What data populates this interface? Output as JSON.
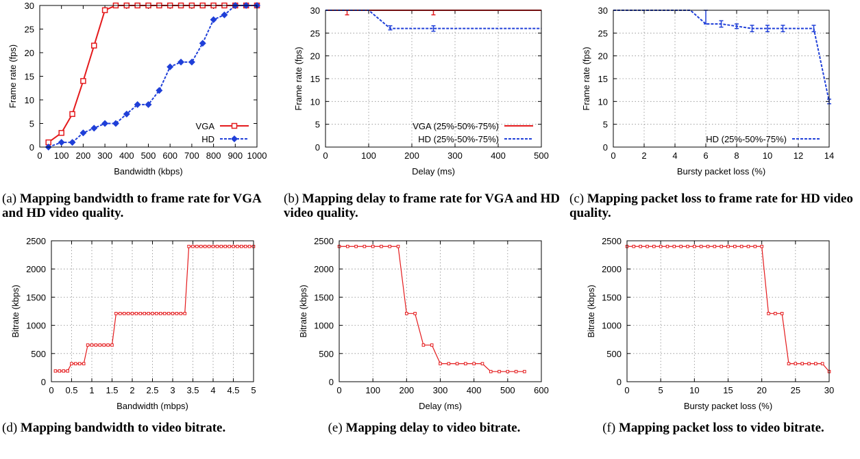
{
  "panels": [
    {
      "tag": "(a)",
      "caption": "Mapping bandwidth to frame rate for VGA and HD video quality.",
      "chart_data": {
        "type": "line",
        "xlabel": "Bandwidth (kbps)",
        "ylabel": "Frame rate (fps)",
        "xlim": [
          0,
          1000
        ],
        "ylim": [
          0,
          30
        ],
        "xticks": [
          0,
          100,
          200,
          300,
          400,
          500,
          600,
          700,
          800,
          900,
          1000
        ],
        "yticks": [
          0,
          5,
          10,
          15,
          20,
          25,
          30
        ],
        "grid": false,
        "legend_position": "bottom-right",
        "series": [
          {
            "name": "VGA",
            "color": "#e41a1c",
            "marker": "square",
            "dash": "solid",
            "x": [
              40,
              100,
              150,
              200,
              250,
              300,
              350,
              400,
              450,
              500,
              550,
              600,
              650,
              700,
              750,
              800,
              850,
              900,
              950,
              1000
            ],
            "y": [
              1,
              3,
              7,
              14,
              21.5,
              29,
              30,
              30,
              30,
              30,
              30,
              30,
              30,
              30,
              30,
              30,
              30,
              30,
              30,
              30
            ]
          },
          {
            "name": "HD",
            "color": "#1f3fd8",
            "marker": "diamond",
            "dash": "dashed",
            "x": [
              40,
              100,
              150,
              200,
              250,
              300,
              350,
              400,
              450,
              500,
              550,
              600,
              650,
              700,
              750,
              800,
              850,
              900,
              950,
              1000
            ],
            "y": [
              0,
              1,
              1,
              3,
              4,
              5,
              5,
              7,
              9,
              9,
              12,
              17,
              18,
              18,
              22,
              27,
              28,
              30,
              30,
              30
            ]
          }
        ]
      }
    },
    {
      "tag": "(b)",
      "caption": "Mapping delay to frame rate for VGA and HD video quality.",
      "chart_data": {
        "type": "line",
        "xlabel": "Delay (ms)",
        "ylabel": "Frame rate (fps)",
        "xlim": [
          0,
          500
        ],
        "ylim": [
          0,
          30
        ],
        "xticks": [
          0,
          100,
          200,
          300,
          400,
          500
        ],
        "yticks": [
          0,
          5,
          10,
          15,
          20,
          25,
          30
        ],
        "grid": true,
        "legend_position": "bottom-right",
        "series": [
          {
            "name": "VGA (25%-50%-75%)",
            "color": "#e41a1c",
            "marker": "none",
            "dash": "solid",
            "x": [
              0,
              50,
              100,
              150,
              200,
              250,
              300,
              350,
              400,
              450,
              500
            ],
            "y": [
              30,
              30,
              30,
              30,
              30,
              30,
              30,
              30,
              30,
              30,
              30
            ],
            "err_low": [
              0,
              1,
              0,
              0,
              0,
              1,
              0,
              0,
              0,
              0,
              0
            ],
            "err_high": [
              0,
              0,
              0,
              0,
              0,
              0,
              0,
              0,
              0,
              0,
              0
            ]
          },
          {
            "name": "HD (25%-50%-75%)",
            "color": "#1f3fd8",
            "marker": "none",
            "dash": "dashed",
            "x": [
              0,
              50,
              100,
              150,
              200,
              250,
              300,
              350,
              400,
              450,
              500
            ],
            "y": [
              30,
              30,
              30,
              26,
              26,
              26,
              26,
              26,
              26,
              26,
              26
            ],
            "err_low": [
              0,
              0,
              0,
              0.3,
              0,
              0.6,
              0,
              0,
              0,
              0,
              0
            ],
            "err_high": [
              0,
              0,
              0,
              0.6,
              0,
              0.6,
              0,
              0,
              0,
              0,
              0
            ]
          }
        ]
      }
    },
    {
      "tag": "(c)",
      "caption": "Mapping packet loss to frame rate for HD video quality.",
      "chart_data": {
        "type": "line",
        "xlabel": "Bursty packet loss (%)",
        "ylabel": "Frame rate (fps)",
        "xlim": [
          0,
          14
        ],
        "ylim": [
          0,
          30
        ],
        "xticks": [
          0,
          2,
          4,
          6,
          8,
          10,
          12,
          14
        ],
        "yticks": [
          0,
          5,
          10,
          15,
          20,
          25,
          30
        ],
        "grid": true,
        "legend_position": "bottom-right",
        "series": [
          {
            "name": "HD (25%-50%-75%)",
            "color": "#1f3fd8",
            "marker": "none",
            "dash": "dashed",
            "x": [
              0,
              1,
              2,
              3,
              4,
              5,
              6,
              7,
              8,
              9,
              10,
              11,
              12,
              13,
              14
            ],
            "y": [
              30,
              30,
              30,
              30,
              30,
              30,
              27,
              27,
              26.5,
              26,
              26,
              26,
              26,
              26,
              10
            ],
            "err_low": [
              0,
              0,
              0,
              0,
              0,
              0,
              0,
              0.7,
              0.5,
              0.7,
              0.7,
              0.7,
              0,
              0.7,
              0.5
            ],
            "err_high": [
              0,
              0,
              0,
              0,
              0,
              0,
              3,
              0.7,
              0.5,
              0.7,
              0.7,
              0.7,
              0,
              0.7,
              0.5
            ]
          }
        ]
      }
    },
    {
      "tag": "(d)",
      "caption": "Mapping bandwidth to video bitrate.",
      "chart_data": {
        "type": "line",
        "xlabel": "Bandwidth (mbps)",
        "ylabel": "Bitrate (kbps)",
        "xlim": [
          0,
          5
        ],
        "ylim": [
          0,
          2500
        ],
        "xticks": [
          0,
          0.5,
          1,
          1.5,
          2,
          2.5,
          3,
          3.5,
          4,
          4.5,
          5
        ],
        "yticks": [
          0,
          500,
          1000,
          1500,
          2000,
          2500
        ],
        "grid": true,
        "series": [
          {
            "color": "#e41a1c",
            "marker": "small-square",
            "dash": "solid",
            "x": [
              0.1,
              0.2,
              0.3,
              0.4,
              0.5,
              0.6,
              0.7,
              0.8,
              0.9,
              1.0,
              1.1,
              1.2,
              1.3,
              1.4,
              1.5,
              1.6,
              1.7,
              1.8,
              1.9,
              2.0,
              2.1,
              2.2,
              2.3,
              2.4,
              2.5,
              2.6,
              2.7,
              2.8,
              2.9,
              3.0,
              3.1,
              3.2,
              3.3,
              3.4,
              3.5,
              3.6,
              3.7,
              3.8,
              3.9,
              4.0,
              4.1,
              4.2,
              4.3,
              4.4,
              4.5,
              4.6,
              4.7,
              4.8,
              4.9,
              5.0
            ],
            "y": [
              190,
              190,
              190,
              190,
              320,
              320,
              320,
              320,
              650,
              650,
              650,
              650,
              650,
              650,
              650,
              1210,
              1210,
              1210,
              1210,
              1210,
              1210,
              1210,
              1210,
              1210,
              1210,
              1210,
              1210,
              1210,
              1210,
              1210,
              1210,
              1210,
              1210,
              2400,
              2400,
              2400,
              2400,
              2400,
              2400,
              2400,
              2400,
              2400,
              2400,
              2400,
              2400,
              2400,
              2400,
              2400,
              2400,
              2400
            ]
          }
        ]
      }
    },
    {
      "tag": "(e)",
      "caption": "Mapping delay to video bitrate.",
      "chart_data": {
        "type": "line",
        "xlabel": "Delay (ms)",
        "ylabel": "Bitrate (kbps)",
        "xlim": [
          0,
          600
        ],
        "ylim": [
          0,
          2500
        ],
        "xticks": [
          0,
          100,
          200,
          300,
          400,
          500,
          600
        ],
        "yticks": [
          0,
          500,
          1000,
          1500,
          2000,
          2500
        ],
        "grid": true,
        "series": [
          {
            "color": "#e41a1c",
            "marker": "small-square",
            "dash": "solid",
            "x": [
              0,
              25,
              50,
              75,
              100,
              125,
              150,
              175,
              200,
              225,
              250,
              275,
              300,
              325,
              350,
              375,
              400,
              425,
              450,
              475,
              500,
              525,
              550
            ],
            "y": [
              2400,
              2400,
              2400,
              2400,
              2400,
              2400,
              2400,
              2400,
              1210,
              1210,
              650,
              650,
              320,
              320,
              320,
              320,
              320,
              320,
              180,
              180,
              180,
              180,
              180
            ]
          }
        ]
      }
    },
    {
      "tag": "(f)",
      "caption": "Mapping packet loss to video bitrate.",
      "chart_data": {
        "type": "line",
        "xlabel": "Bursty packet loss (%)",
        "ylabel": "Bitrate (kbps)",
        "xlim": [
          0,
          30
        ],
        "ylim": [
          0,
          2500
        ],
        "xticks": [
          0,
          5,
          10,
          15,
          20,
          25,
          30
        ],
        "yticks": [
          0,
          500,
          1000,
          1500,
          2000,
          2500
        ],
        "grid": true,
        "series": [
          {
            "color": "#e41a1c",
            "marker": "small-square",
            "dash": "solid",
            "x": [
              0,
              1,
              2,
              3,
              4,
              5,
              6,
              7,
              8,
              9,
              10,
              11,
              12,
              13,
              14,
              15,
              16,
              17,
              18,
              19,
              20,
              21,
              22,
              23,
              24,
              25,
              26,
              27,
              28,
              29,
              30
            ],
            "y": [
              2400,
              2400,
              2400,
              2400,
              2400,
              2400,
              2400,
              2400,
              2400,
              2400,
              2400,
              2400,
              2400,
              2400,
              2400,
              2400,
              2400,
              2400,
              2400,
              2400,
              2400,
              1210,
              1210,
              1210,
              320,
              320,
              320,
              320,
              320,
              320,
              180
            ]
          }
        ]
      }
    }
  ]
}
